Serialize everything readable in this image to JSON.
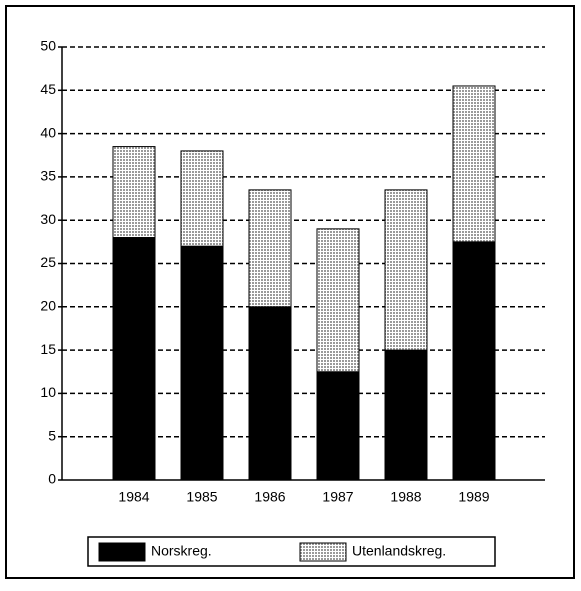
{
  "chart_data": {
    "type": "stacked_bar",
    "categories": [
      "1984",
      "1985",
      "1986",
      "1987",
      "1988",
      "1989"
    ],
    "series": [
      {
        "name": "Norskreg.",
        "color": "#000000",
        "values": [
          28,
          27,
          20,
          12.5,
          15,
          27.5
        ]
      },
      {
        "name": "Utenlandskreg.",
        "color": "#9a9a9a",
        "values": [
          10.5,
          11,
          13.5,
          16.5,
          18.5,
          18
        ]
      }
    ],
    "ylim": [
      0,
      50
    ],
    "yticks": [
      0,
      5,
      10,
      15,
      20,
      25,
      30,
      35,
      40,
      45,
      50
    ],
    "grid": true,
    "legend": "bottom"
  }
}
